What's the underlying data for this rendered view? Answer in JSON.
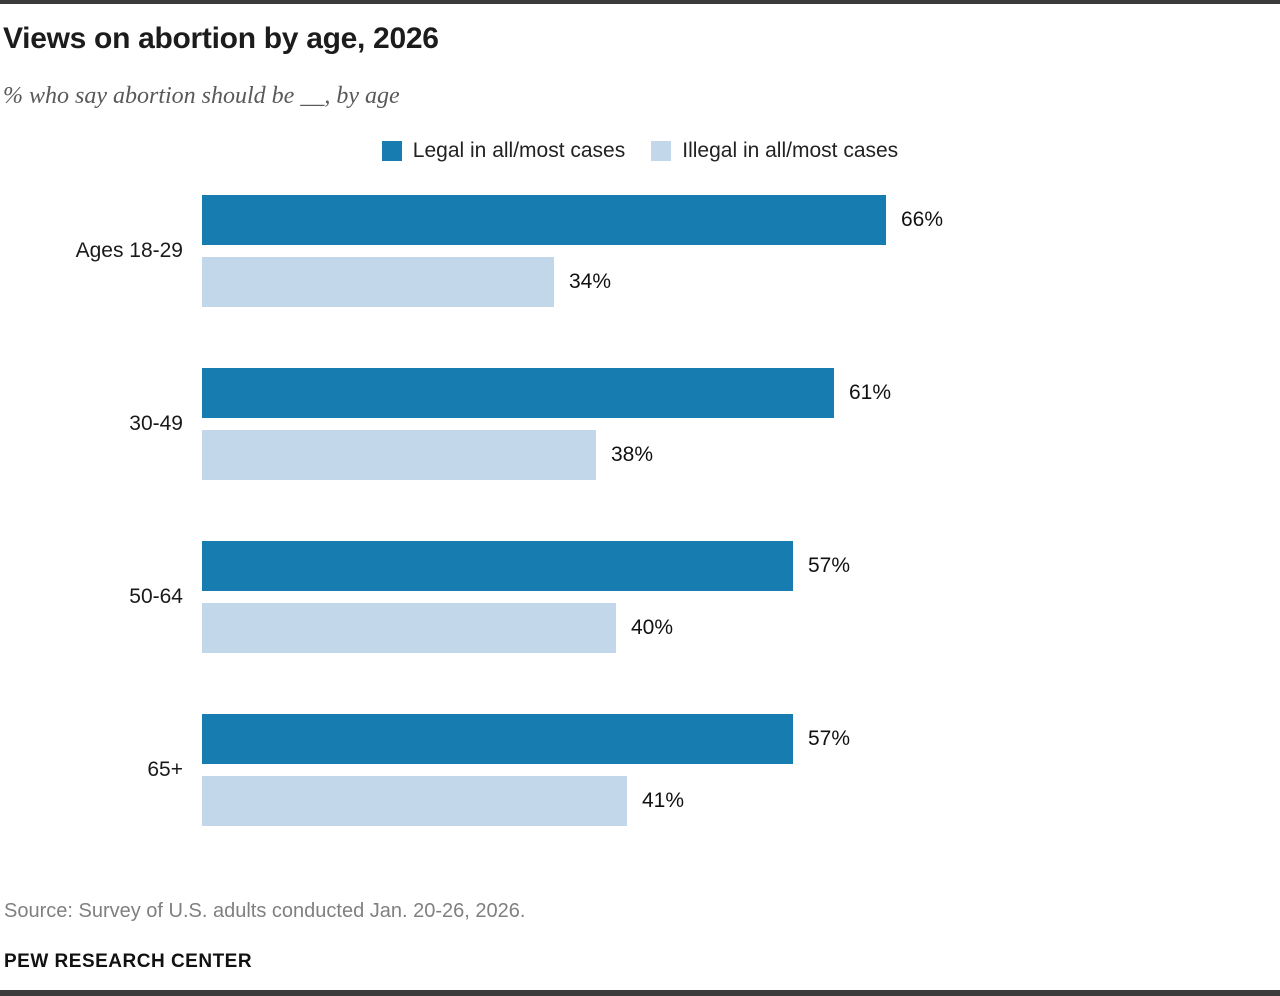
{
  "header": {
    "title": "Views on abortion by age, 2026",
    "subtitle": "% who say abortion should be __, by age"
  },
  "legend": {
    "items": [
      {
        "label": "Legal in all/most cases",
        "color": "#177cb0"
      },
      {
        "label": "Illegal in all/most cases",
        "color": "#c2d8ea"
      }
    ]
  },
  "chart_data": {
    "type": "bar",
    "orientation": "horizontal",
    "title": "Views on abortion by age, 2026",
    "subtitle": "% who say abortion should be __, by age",
    "categories": [
      "Ages 18-29",
      "30-49",
      "50-64",
      "65+"
    ],
    "series": [
      {
        "name": "Legal in all/most cases",
        "color": "#177cb0",
        "values": [
          66,
          61,
          57,
          57
        ]
      },
      {
        "name": "Illegal in all/most cases",
        "color": "#c2d8ea",
        "values": [
          34,
          38,
          40,
          41
        ]
      }
    ],
    "xlim": [
      0,
      100
    ],
    "value_label_format": "{value}%",
    "legend_position": "top-center",
    "grid": false
  },
  "display": {
    "rows": [
      {
        "legal": "66%",
        "illegal": "34%"
      },
      {
        "legal": "61%",
        "illegal": "38%"
      },
      {
        "legal": "57%",
        "illegal": "40%"
      },
      {
        "legal": "57%",
        "illegal": "41%"
      }
    ]
  },
  "footer": {
    "source": "Source: Survey of U.S. adults conducted Jan. 20-26, 2026.",
    "brand": "PEW RESEARCH CENTER"
  }
}
